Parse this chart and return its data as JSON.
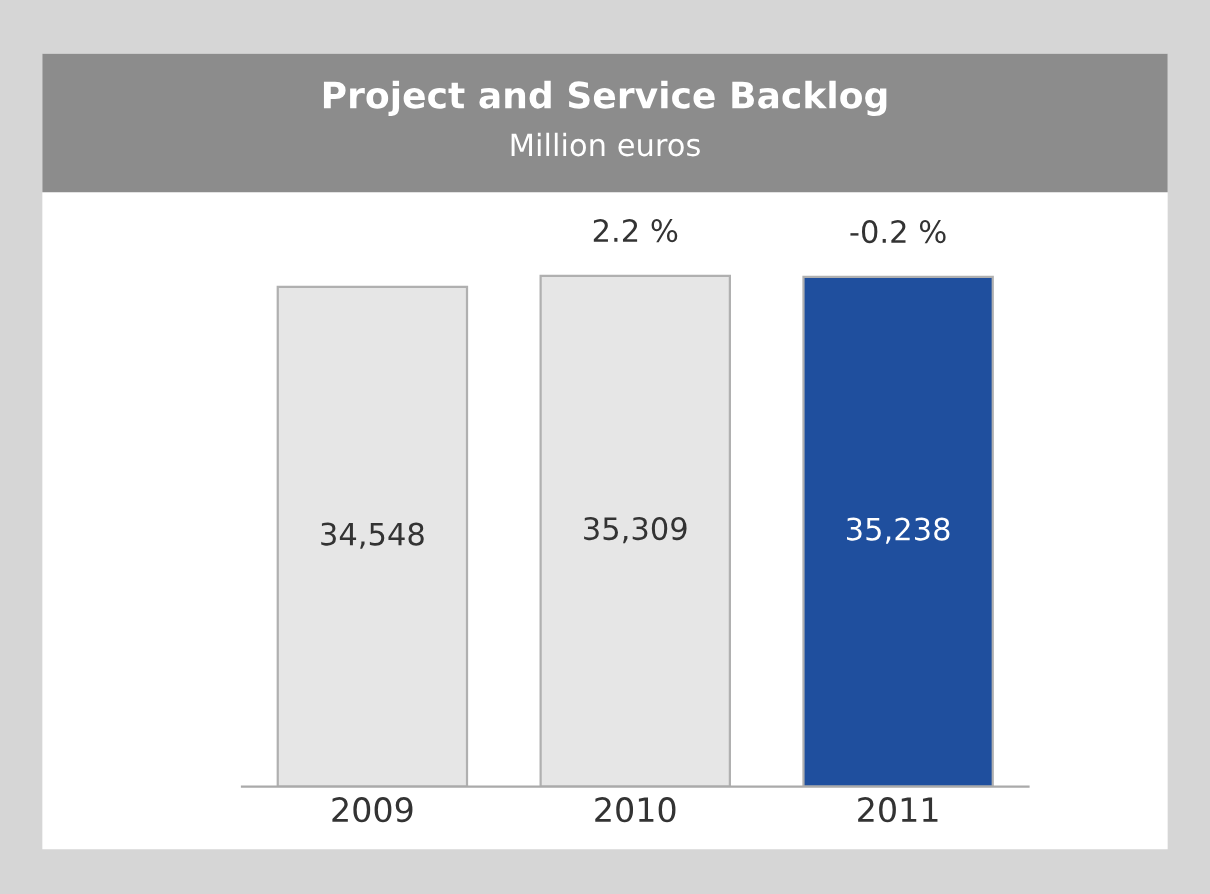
{
  "chart_data": {
    "type": "bar",
    "title": "Project and Service Backlog",
    "subtitle": "Million euros",
    "categories": [
      "2009",
      "2010",
      "2011"
    ],
    "values": [
      34548,
      35309,
      35238
    ],
    "colors": [
      "#e6e6e6",
      "#e6e6e6",
      "#1f4f9e"
    ],
    "value_labels": [
      "34,548",
      "35,309",
      "35,238"
    ],
    "annotations": [
      "2.2 %",
      "-0.2 %"
    ],
    "grid": false,
    "legend": false
  }
}
